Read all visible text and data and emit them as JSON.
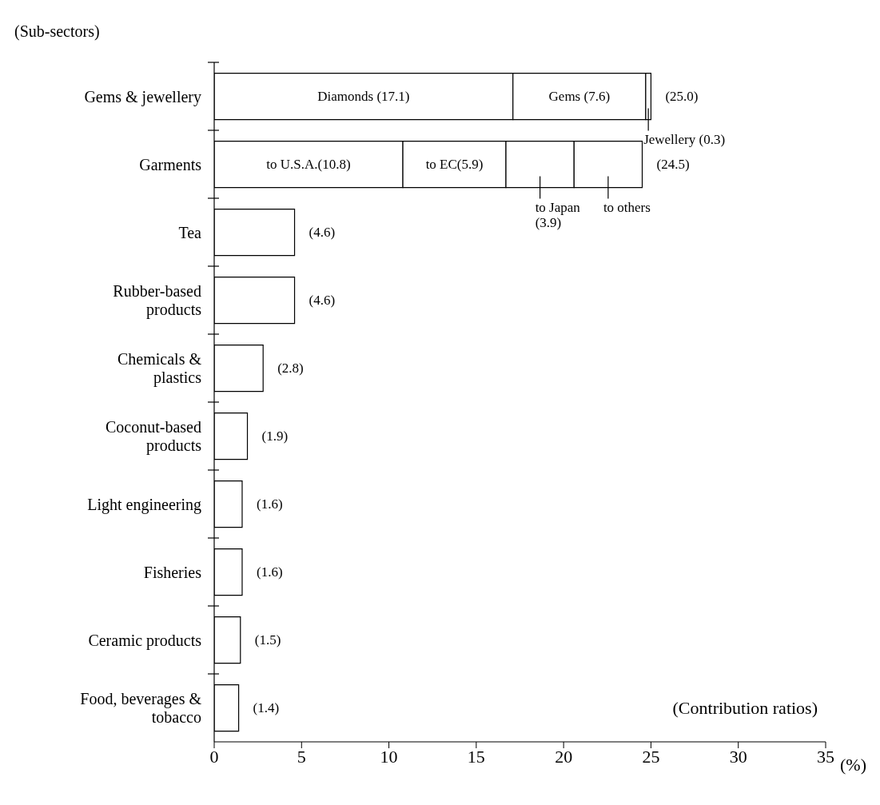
{
  "chart_data": {
    "type": "bar",
    "orientation": "horizontal",
    "stacked": true,
    "ylabel": "(Sub-sectors)",
    "xlabel": "(%)",
    "annotations": [
      "(Contribution ratios)"
    ],
    "categories": [
      "Gems & jewellery",
      "Garments",
      "Tea",
      "Rubber-based products",
      "Chemicals & plastics",
      "Coconut-based products",
      "Light engineering",
      "Fisheries",
      "Ceramic products",
      "Food, beverages & tobacco"
    ],
    "series": [
      {
        "color": "#ffffff",
        "values": [
          17.1,
          10.8,
          4.6,
          4.6,
          2.8,
          1.9,
          1.6,
          1.6,
          1.5,
          1.4
        ],
        "value_labels": [
          "Diamonds (17.1)",
          "to U.S.A.(10.8)",
          null,
          null,
          null,
          null,
          null,
          null,
          null,
          null
        ]
      },
      {
        "color": "#ffffff",
        "values": [
          7.6,
          5.9,
          null,
          null,
          null,
          null,
          null,
          null,
          null,
          null
        ],
        "value_labels": [
          "Gems (7.6)",
          "to EC(5.9)",
          null,
          null,
          null,
          null,
          null,
          null,
          null,
          null
        ]
      },
      {
        "color": "#ffffff",
        "values": [
          0.3,
          3.9,
          null,
          null,
          null,
          null,
          null,
          null,
          null,
          null
        ],
        "value_labels": [
          "Jewellery (0.3)",
          "to Japan\n(3.9)",
          null,
          null,
          null,
          null,
          null,
          null,
          null,
          null
        ]
      },
      {
        "color": "#ffffff",
        "values": [
          null,
          3.9,
          null,
          null,
          null,
          null,
          null,
          null,
          null,
          null
        ],
        "value_labels": [
          null,
          "to others",
          null,
          null,
          null,
          null,
          null,
          null,
          null,
          null
        ]
      }
    ],
    "totals": [
      "(25.0)",
      "(24.5)",
      "(4.6)",
      "(4.6)",
      "(2.8)",
      "(1.9)",
      "(1.6)",
      "(1.6)",
      "(1.5)",
      "(1.4)"
    ],
    "xlim": [
      0,
      35
    ],
    "xticks": [
      0,
      5,
      10,
      15,
      20,
      25,
      30,
      35
    ]
  }
}
